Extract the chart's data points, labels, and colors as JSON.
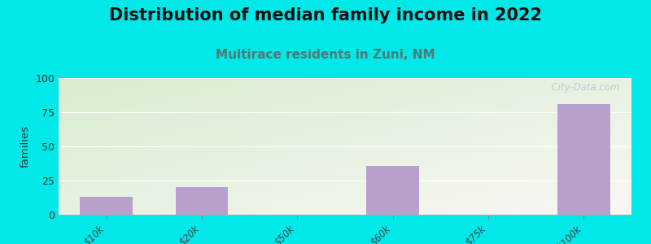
{
  "title": "Distribution of median family income in 2022",
  "subtitle": "Multirace residents in Zuni, NM",
  "categories": [
    "$10k",
    "$20k",
    "$50k",
    "$60k",
    "$75k",
    ">$100k"
  ],
  "values": [
    13,
    20,
    0,
    36,
    0,
    81
  ],
  "bar_color": "#b8a0cc",
  "ylabel": "families",
  "ylim": [
    0,
    100
  ],
  "yticks": [
    0,
    25,
    50,
    75,
    100
  ],
  "background_outer": "#00e8e8",
  "background_plot_color1": "#d8ecd0",
  "background_plot_color2": "#f0f4ee",
  "background_plot_color3": "#f8f8f4",
  "title_fontsize": 15,
  "subtitle_fontsize": 11,
  "subtitle_color": "#507878",
  "watermark": "  City-Data.com",
  "watermark_color": "#b0c8cc"
}
